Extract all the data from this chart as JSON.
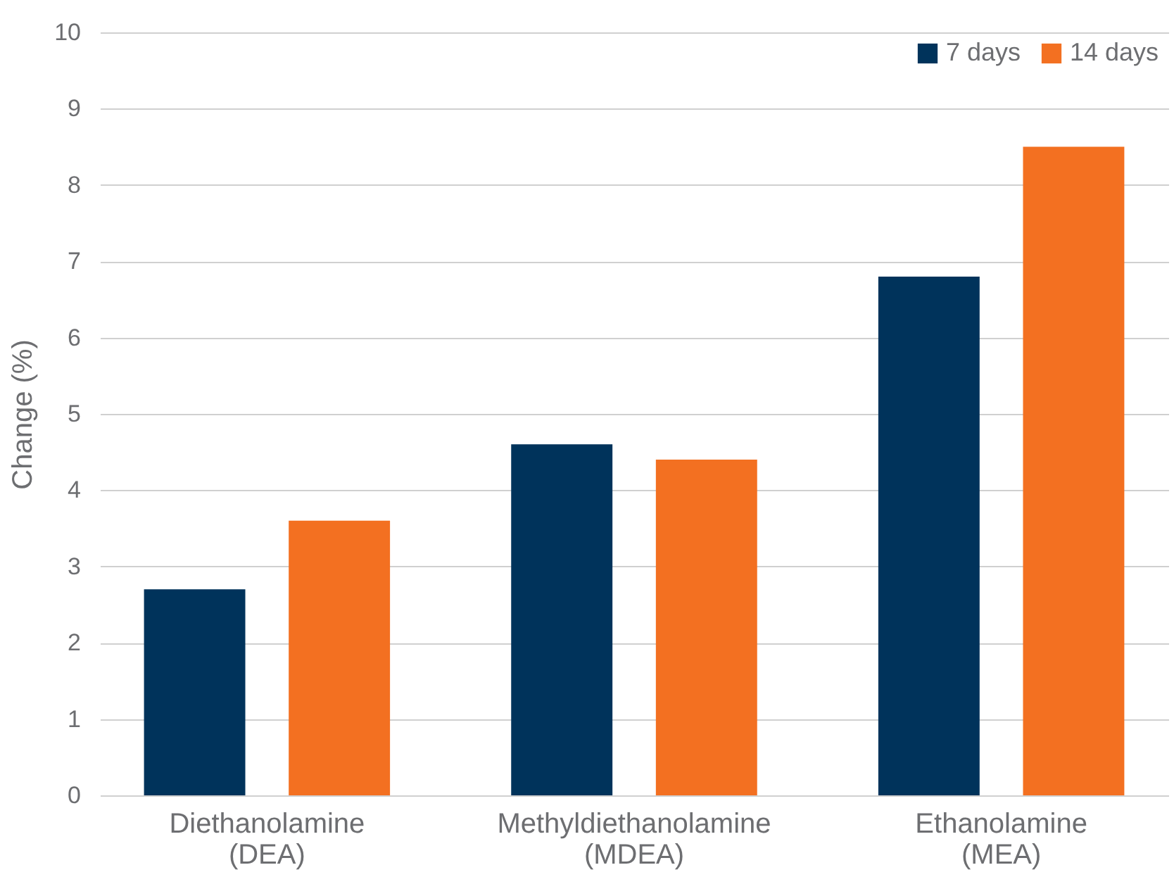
{
  "chart_data": {
    "type": "bar",
    "ylabel": "Change (%)",
    "categories": [
      "Diethanolamine (DEA)",
      "Methyldiethanolamine (MDEA)",
      "Ethanolamine (MEA)"
    ],
    "series": [
      {
        "name": "7 days",
        "color": "#00335b",
        "values": [
          2.7,
          4.6,
          6.8
        ]
      },
      {
        "name": "14 days",
        "color": "#f37021",
        "values": [
          3.6,
          4.4,
          8.5
        ]
      }
    ],
    "ylim": [
      0,
      10
    ],
    "yticks": [
      0,
      1,
      2,
      3,
      4,
      5,
      6,
      7,
      8,
      9,
      10
    ],
    "grid": "y",
    "legend": "top right"
  }
}
